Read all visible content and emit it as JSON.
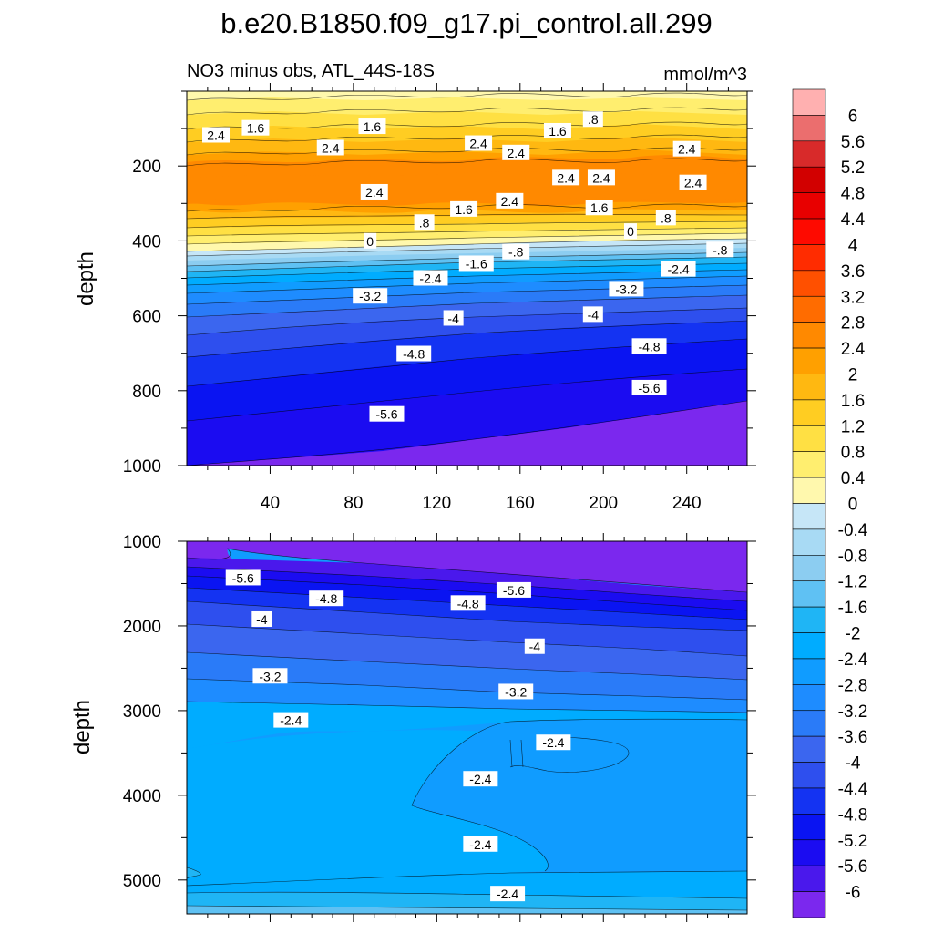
{
  "figure": {
    "title": "b.e20.B1850.f09_g17.pi_control.all.299",
    "subtitle_left": "NO3 minus obs, ATL_44S-18S",
    "subtitle_right": "mmol/m^3"
  },
  "chart_data": [
    {
      "type": "heatmap",
      "panel": "upper",
      "title": "",
      "xlabel": "",
      "ylabel": "depth",
      "xlim": [
        0,
        269
      ],
      "ylim": [
        1000,
        0
      ],
      "x_ticks": [
        40,
        80,
        120,
        160,
        200,
        240
      ],
      "y_ticks": [
        200,
        400,
        600,
        800,
        1000
      ],
      "contour_labels": [
        {
          "text": "2.4",
          "x": 14,
          "y": 118
        },
        {
          "text": "1.6",
          "x": 33,
          "y": 99
        },
        {
          "text": "1.6",
          "x": 89,
          "y": 95
        },
        {
          "text": "2.4",
          "x": 69,
          "y": 152
        },
        {
          "text": "2.4",
          "x": 140,
          "y": 140
        },
        {
          "text": "2.4",
          "x": 158,
          "y": 165
        },
        {
          "text": "1.6",
          "x": 178,
          "y": 107
        },
        {
          "text": ".8",
          "x": 195,
          "y": 76
        },
        {
          "text": "2.4",
          "x": 240,
          "y": 155
        },
        {
          "text": "2.4",
          "x": 182,
          "y": 232
        },
        {
          "text": "2.4",
          "x": 199,
          "y": 232
        },
        {
          "text": "2.4",
          "x": 243,
          "y": 245
        },
        {
          "text": "2.4",
          "x": 90,
          "y": 270
        },
        {
          "text": "2.4",
          "x": 155,
          "y": 294
        },
        {
          "text": "1.6",
          "x": 133,
          "y": 316
        },
        {
          "text": "1.6",
          "x": 198,
          "y": 312
        },
        {
          "text": ".8",
          "x": 114,
          "y": 351
        },
        {
          "text": ".8",
          "x": 230,
          "y": 339
        },
        {
          "text": "0",
          "x": 88,
          "y": 401
        },
        {
          "text": "0",
          "x": 213,
          "y": 375
        },
        {
          "text": "-.8",
          "x": 158,
          "y": 430
        },
        {
          "text": "-.8",
          "x": 256,
          "y": 424
        },
        {
          "text": "-1.6",
          "x": 139,
          "y": 461
        },
        {
          "text": "-2.4",
          "x": 117,
          "y": 500
        },
        {
          "text": "-2.4",
          "x": 236,
          "y": 476
        },
        {
          "text": "-3.2",
          "x": 88,
          "y": 548
        },
        {
          "text": "-3.2",
          "x": 211,
          "y": 529
        },
        {
          "text": "-4",
          "x": 128,
          "y": 607
        },
        {
          "text": "-4",
          "x": 195,
          "y": 597
        },
        {
          "text": "-4.8",
          "x": 109,
          "y": 702
        },
        {
          "text": "-4.8",
          "x": 222,
          "y": 682
        },
        {
          "text": "-5.6",
          "x": 96,
          "y": 863
        },
        {
          "text": "-5.6",
          "x": 222,
          "y": 793
        }
      ]
    },
    {
      "type": "heatmap",
      "panel": "lower",
      "title": "",
      "xlabel": "",
      "ylabel": "depth",
      "xlim": [
        0,
        269
      ],
      "ylim": [
        5400,
        1000
      ],
      "x_ticks": [
        40,
        80,
        120,
        160,
        200,
        240
      ],
      "y_ticks": [
        1000,
        2000,
        3000,
        4000,
        5000
      ],
      "contour_labels": [
        {
          "text": "-5.6",
          "x": 27,
          "y": 1435
        },
        {
          "text": "-4.8",
          "x": 67,
          "y": 1680
        },
        {
          "text": "-5.6",
          "x": 157,
          "y": 1580
        },
        {
          "text": "-4.8",
          "x": 135,
          "y": 1735
        },
        {
          "text": "-4",
          "x": 36,
          "y": 1925
        },
        {
          "text": "-4",
          "x": 167,
          "y": 2245
        },
        {
          "text": "-3.2",
          "x": 40,
          "y": 2595
        },
        {
          "text": "-3.2",
          "x": 158,
          "y": 2780
        },
        {
          "text": "-2.4",
          "x": 50,
          "y": 3115
        },
        {
          "text": "-2.4",
          "x": 176,
          "y": 3380
        },
        {
          "text": "-2.4",
          "x": 141,
          "y": 3810
        },
        {
          "text": "-2.4",
          "x": 141,
          "y": 4580
        },
        {
          "text": "-2.4",
          "x": 154,
          "y": 5165
        }
      ]
    }
  ],
  "colorbar": {
    "labels": [
      "6",
      "5.6",
      "5.2",
      "4.8",
      "4.4",
      "4",
      "3.6",
      "3.2",
      "2.8",
      "2.4",
      "2",
      "1.6",
      "1.2",
      "0.8",
      "0.4",
      "0",
      "-0.4",
      "-0.8",
      "-1.2",
      "-1.6",
      "-2",
      "-2.4",
      "-2.8",
      "-3.2",
      "-3.6",
      "-4",
      "-4.4",
      "-4.8",
      "-5.2",
      "-5.6",
      "-6"
    ],
    "colors": [
      "#ffb0b0",
      "#eb6e6e",
      "#d82a2a",
      "#d20000",
      "#e80000",
      "#fe0a00",
      "#ff2c00",
      "#ff5000",
      "#ff6c00",
      "#ff8900",
      "#ffa000",
      "#ffb811",
      "#ffcd22",
      "#ffe043",
      "#ffee6f",
      "#fff8ad",
      "#c6e6f7",
      "#a8daf4",
      "#8ccdf1",
      "#5fc1f3",
      "#1fb5f5",
      "#00acff",
      "#109cff",
      "#1e8cff",
      "#2a7bf8",
      "#3b66ef",
      "#2e4fee",
      "#1433f2",
      "#0a14f2",
      "#1b0cf1",
      "#4a18ec",
      "#7b28ee"
    ]
  }
}
